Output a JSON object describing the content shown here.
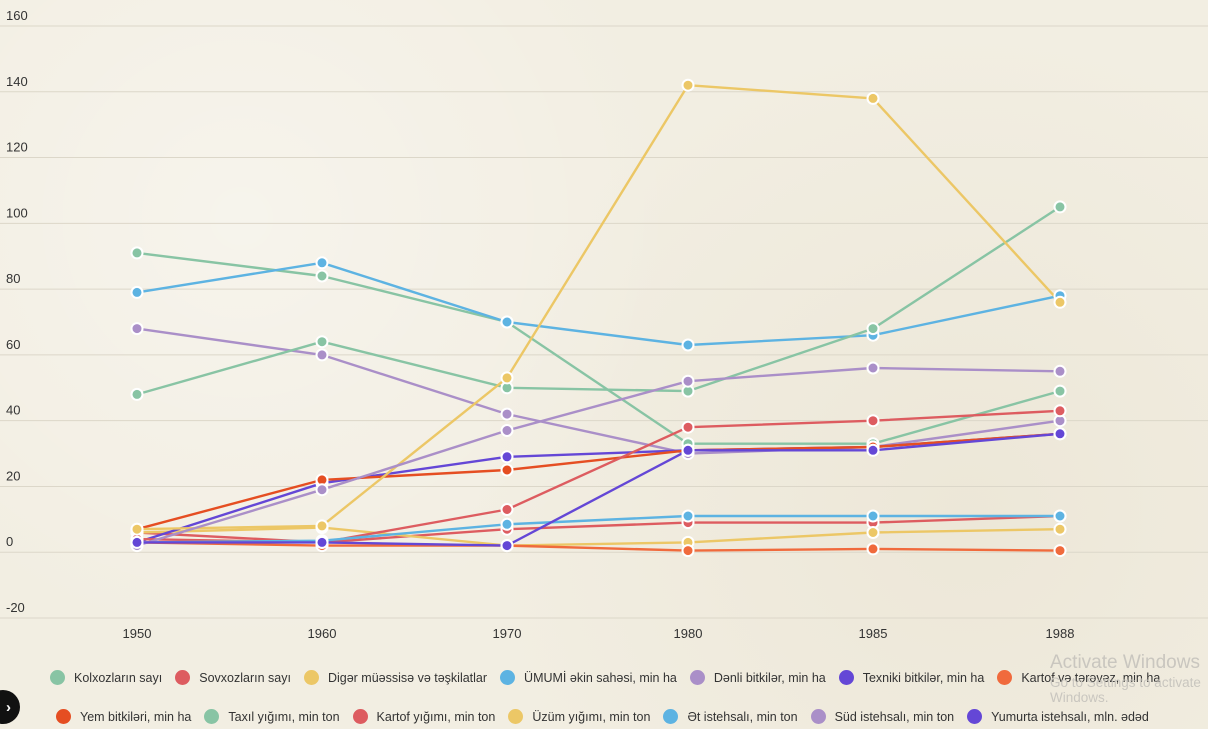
{
  "chart_data": {
    "type": "line",
    "title": "",
    "xlabel": "",
    "ylabel": "",
    "x": [
      "1950",
      "1960",
      "1970",
      "1980",
      "1985",
      "1988"
    ],
    "ylim": [
      -20,
      160
    ],
    "yticks": [
      -20,
      0,
      20,
      40,
      60,
      80,
      100,
      120,
      140,
      160
    ],
    "grid": true,
    "legend_position": "bottom",
    "series": [
      {
        "name": "Kolxozların sayı",
        "color": "#88c4a4",
        "values": [
          91,
          84,
          70,
          33,
          33,
          49
        ]
      },
      {
        "name": "Sovxozların sayı",
        "color": "#dd5c60",
        "values": [
          6,
          3,
          7,
          9,
          9,
          11
        ]
      },
      {
        "name": "Digər müəssisə və təşkilatlar",
        "color": "#ecc766",
        "values": [
          6,
          7.5,
          2,
          3,
          6,
          7
        ]
      },
      {
        "name": "ÜMUMİ əkin sahəsi, min ha",
        "color": "#5db3e2",
        "values": [
          79,
          88,
          70,
          63,
          66,
          78
        ]
      },
      {
        "name": "Dənli bitkilər, min ha",
        "color": "#aa8fc8",
        "values": [
          68,
          60,
          42,
          30,
          32,
          40
        ]
      },
      {
        "name": "Texniki bitkilər, min ha",
        "color": "#6447d6",
        "values": [
          3,
          21,
          29,
          31,
          32,
          36
        ]
      },
      {
        "name": "Kartof və tərəvəz, min ha",
        "color": "#f06a3c",
        "values": [
          3,
          2,
          2,
          0.5,
          1,
          0.5
        ]
      },
      {
        "name": "Yem bitkiləri, min ha",
        "color": "#e54e22",
        "values": [
          7,
          22,
          25,
          31,
          32,
          36
        ]
      },
      {
        "name": "Taxıl yığımı, min ton",
        "color": "#88c4a4",
        "values": [
          48,
          64,
          50,
          49,
          68,
          105
        ]
      },
      {
        "name": "Kartof yığımı, min ton",
        "color": "#dd5c60",
        "values": [
          4,
          3,
          13,
          38,
          40,
          43
        ]
      },
      {
        "name": "Üzüm yığımı, min ton",
        "color": "#ecc766",
        "values": [
          7,
          8,
          53,
          142,
          138,
          76
        ]
      },
      {
        "name": "Ət istehsalı, min ton",
        "color": "#5db3e2",
        "values": [
          3,
          3.5,
          8.5,
          11,
          11,
          11
        ]
      },
      {
        "name": "Süd istehsalı, min ton",
        "color": "#aa8fc8",
        "values": [
          2,
          19,
          37,
          52,
          56,
          55
        ]
      },
      {
        "name": "Yumurta istehsalı, mln. ədəd",
        "color": "#6447d6",
        "values": [
          3,
          3,
          2,
          31,
          31,
          36
        ]
      }
    ]
  },
  "legend": {
    "row1": [
      {
        "label": "Kolxozların sayı",
        "color": "#88c4a4"
      },
      {
        "label": "Sovxozların sayı",
        "color": "#dd5c60"
      },
      {
        "label": "Digər müəssisə və təşkilatlar",
        "color": "#ecc766"
      },
      {
        "label": "ÜMUMİ əkin sahəsi, min ha",
        "color": "#5db3e2"
      },
      {
        "label": "Dənli bitkilər, min ha",
        "color": "#aa8fc8"
      },
      {
        "label": "Texniki bitkilər, min ha",
        "color": "#6447d6"
      },
      {
        "label": "Kartof və tərəvəz, min ha",
        "color": "#f06a3c"
      }
    ],
    "row2": [
      {
        "label": "Yem bitkiləri, min ha",
        "color": "#e54e22"
      },
      {
        "label": "Taxıl yığımı, min ton",
        "color": "#88c4a4"
      },
      {
        "label": "Kartof yığımı, min ton",
        "color": "#dd5c60"
      },
      {
        "label": "Üzüm yığımı, min ton",
        "color": "#ecc766"
      },
      {
        "label": "Ət istehsalı, min ton",
        "color": "#5db3e2"
      },
      {
        "label": "Süd istehsalı, min ton",
        "color": "#aa8fc8"
      },
      {
        "label": "Yumurta istehsalı, mln. ədəd",
        "color": "#6447d6"
      }
    ]
  },
  "watermark": {
    "title": "Activate Windows",
    "subtitle": "Go to Settings to activate Windows."
  }
}
